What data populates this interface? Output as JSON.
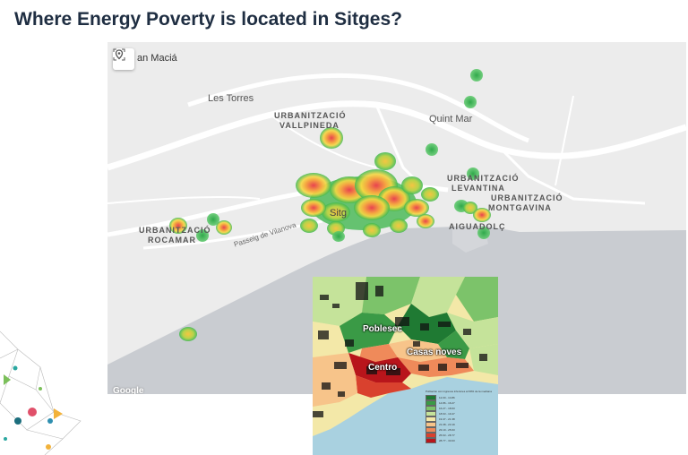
{
  "title": "Where Energy Poverty is located in Sitges?",
  "map": {
    "labels": {
      "plaza": "an Maciá",
      "les_torres": "Les Torres",
      "vallpineda_1": "URBANITZACIÓ",
      "vallpineda_2": "VALLPINEDA",
      "quint_mar": "Quint Mar",
      "levantina_1": "URBANITZACIÓ",
      "levantina_2": "LEVANTINA",
      "montgavina_1": "URBANITZACIÓ",
      "montgavina_2": "MONTGAVINA",
      "rocamar_1": "URBANITZACIÓ",
      "rocamar_2": "ROCAMAR",
      "sitges": "Sitg",
      "aiguadolc": "AIGUADOLÇ",
      "passeig": "Passeig de Vilanova",
      "attribution": "Google"
    },
    "icons": {
      "locate": "locate-icon"
    },
    "colors": {
      "land": "#ececec",
      "sea": "#c9ccd1",
      "road": "#ffffff",
      "heat_low": "#3fb950",
      "heat_mid": "#f5c542",
      "heat_high": "#e8434f"
    }
  },
  "inset": {
    "labels": {
      "poblesec": "Poblesec",
      "casas_noves": "Casas noves",
      "centro": "Centro"
    },
    "legend_title": "Población con ingresos inferiores al 60% de la mediana",
    "legend": [
      {
        "label": "12.00 - 14.86",
        "color": "#1f7a33"
      },
      {
        "label": "14.86 - 16.27",
        "color": "#3a9a46"
      },
      {
        "label": "16.27 - 18.63",
        "color": "#7cc36a"
      },
      {
        "label": "18.63 - 19.47",
        "color": "#c5e39a"
      },
      {
        "label": "19.47 - 21.38",
        "color": "#f3e8a8"
      },
      {
        "label": "21.38 - 23.19",
        "color": "#f7c48a"
      },
      {
        "label": "23.19 - 25.63",
        "color": "#ef8a5a"
      },
      {
        "label": "25.63 - 28.77",
        "color": "#d9412e"
      },
      {
        "label": "28.77 - 33.03",
        "color": "#b8151b"
      }
    ]
  }
}
